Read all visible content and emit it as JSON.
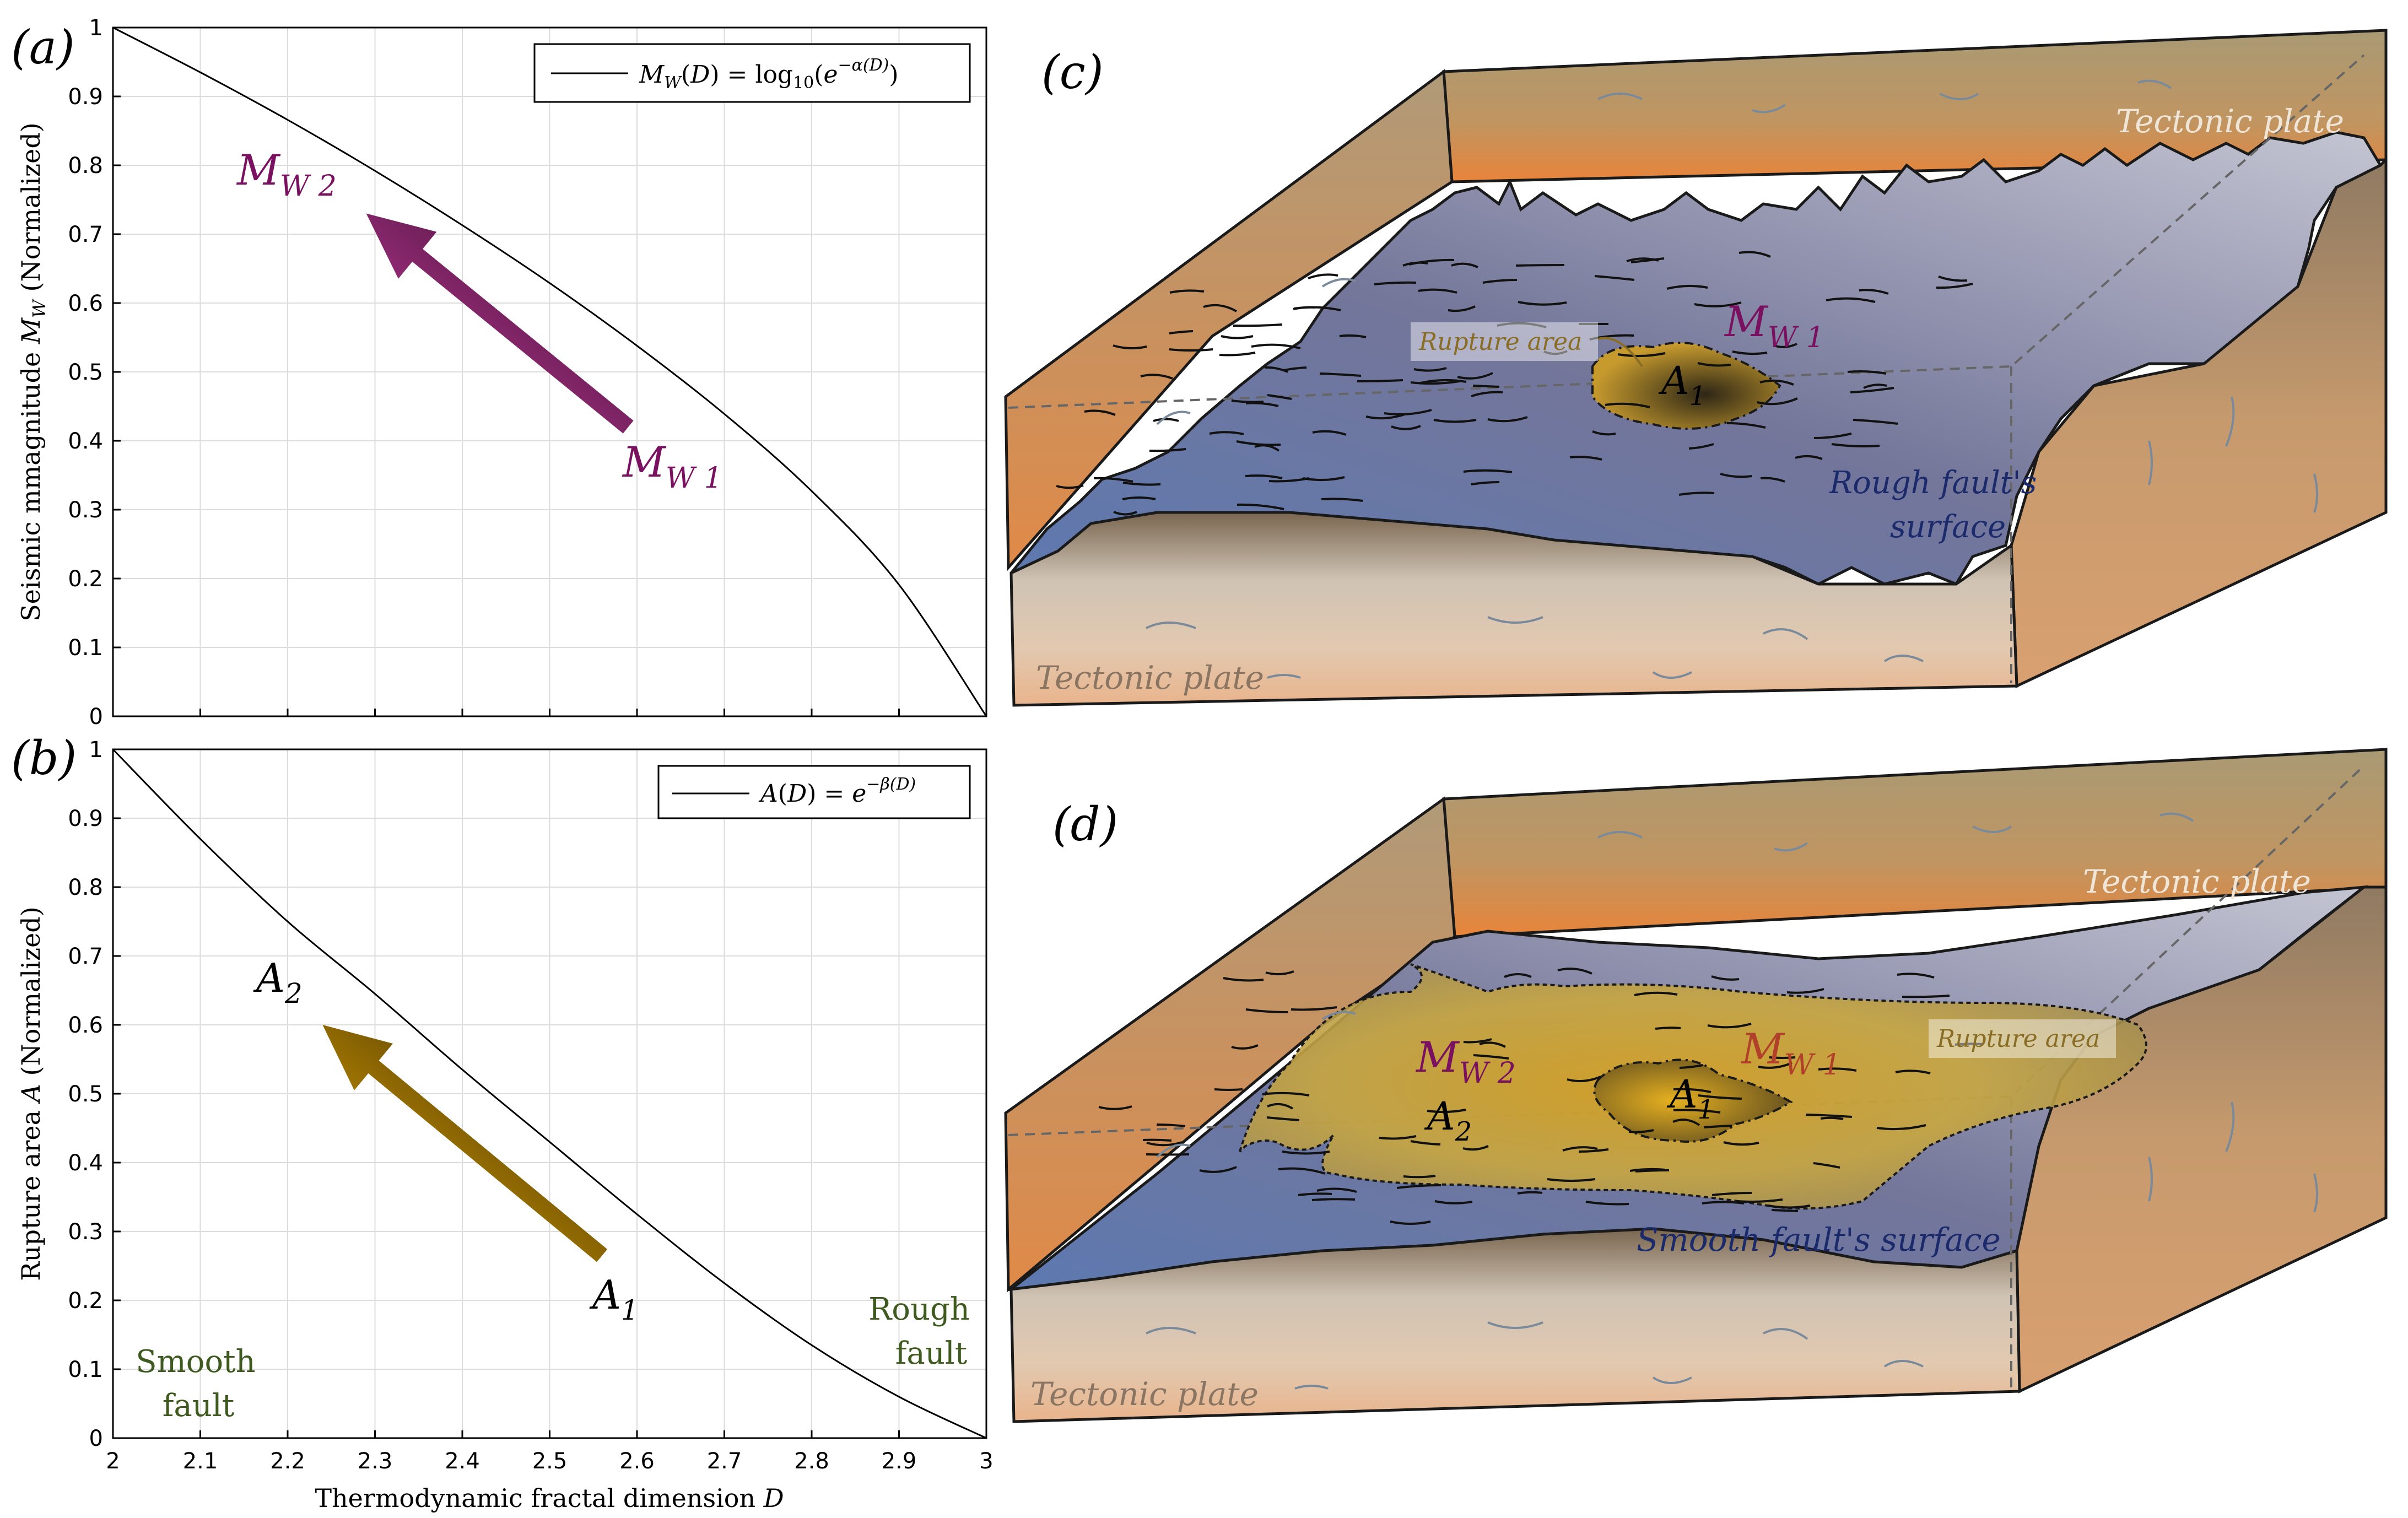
{
  "chart_data": [
    {
      "id": "a",
      "type": "line",
      "panel_label": "(a)",
      "x": [
        2.0,
        2.1,
        2.2,
        2.3,
        2.4,
        2.5,
        2.6,
        2.7,
        2.8,
        2.9,
        3.0
      ],
      "series": [
        {
          "name": "M_W(D) = log10(e^{-α(D)})",
          "values": [
            1.0,
            0.935,
            0.866,
            0.792,
            0.713,
            0.629,
            0.538,
            0.439,
            0.327,
            0.191,
            0.0
          ],
          "color": "#000000"
        }
      ],
      "xlim": [
        2,
        3
      ],
      "ylim": [
        0,
        1
      ],
      "xticks": [
        "2",
        "2.1",
        "2.2",
        "2.3",
        "2.4",
        "2.5",
        "2.6",
        "2.7",
        "2.8",
        "2.9",
        "3"
      ],
      "yticks": [
        "0",
        "0.1",
        "0.2",
        "0.3",
        "0.4",
        "0.5",
        "0.6",
        "0.7",
        "0.8",
        "0.9",
        "1"
      ],
      "ylabel": "Seismic mmagnitude M_W (Normalized)",
      "xlabel": "",
      "grid": true,
      "legend": {
        "position": "top-right",
        "text": "M_W(D) = log10(e^{-α(D)})"
      },
      "arrow": {
        "from": [
          2.59,
          0.42
        ],
        "to": [
          2.29,
          0.73
        ],
        "color_start": "#d43fa9",
        "color_end": "#2a0a22"
      },
      "annotations": [
        {
          "text": "M",
          "sub": "W 2",
          "x": 2.2,
          "y": 0.79,
          "color": "#7a1060"
        },
        {
          "text": "M",
          "sub": "W 1",
          "x": 2.61,
          "y": 0.36,
          "color": "#7a1060"
        }
      ]
    },
    {
      "id": "b",
      "type": "line",
      "panel_label": "(b)",
      "x": [
        2.0,
        2.1,
        2.2,
        2.3,
        2.4,
        2.5,
        2.6,
        2.7,
        2.8,
        2.9,
        3.0
      ],
      "series": [
        {
          "name": "A(D) = e^{-β(D)}",
          "values": [
            1.0,
            0.87,
            0.75,
            0.645,
            0.535,
            0.43,
            0.325,
            0.225,
            0.135,
            0.06,
            0.0
          ],
          "color": "#000000"
        }
      ],
      "xlim": [
        2,
        3
      ],
      "ylim": [
        0,
        1
      ],
      "xticks": [
        "2",
        "2.1",
        "2.2",
        "2.3",
        "2.4",
        "2.5",
        "2.6",
        "2.7",
        "2.8",
        "2.9",
        "3"
      ],
      "yticks": [
        "0",
        "0.1",
        "0.2",
        "0.3",
        "0.4",
        "0.5",
        "0.6",
        "0.7",
        "0.8",
        "0.9",
        "1"
      ],
      "ylabel": "Rupture area A (Normalized)",
      "xlabel": "Thermodynamic fractal dimension D",
      "grid": true,
      "legend": {
        "position": "top-right",
        "text": "A(D) = e^{-β(D)}"
      },
      "arrow": {
        "from": [
          2.56,
          0.265
        ],
        "to": [
          2.24,
          0.6
        ],
        "color_start": "#f0b000",
        "color_end": "#2a1e05"
      },
      "annotations": [
        {
          "text": "A",
          "sub": "2",
          "x": 2.19,
          "y": 0.64,
          "color": "#000000"
        },
        {
          "text": "A",
          "sub": "1",
          "x": 2.57,
          "y": 0.18,
          "color": "#000000"
        },
        {
          "text": "Smooth",
          "x": 2.09,
          "y": 0.09,
          "color": "#3f5a1e"
        },
        {
          "text": "fault",
          "x": 2.1,
          "y": 0.035,
          "color": "#3f5a1e"
        },
        {
          "text": "Rough",
          "x": 2.95,
          "y": 0.165,
          "color": "#3f5a1e"
        },
        {
          "text": "fault",
          "x": 2.96,
          "y": 0.105,
          "color": "#3f5a1e"
        }
      ]
    }
  ],
  "illustration_c": {
    "panel_label": "(c)",
    "tectonic_plate_top": "Tectonic plate",
    "tectonic_plate_bottom": "Tectonic plate",
    "rupture_area": "Rupture area",
    "mw1_main": "M",
    "mw1_sub": "W 1",
    "a1_main": "A",
    "a1_sub": "1",
    "surface_line1": "Rough fault's",
    "surface_line2": "surface"
  },
  "illustration_d": {
    "panel_label": "(d)",
    "tectonic_plate_top": "Tectonic plate",
    "tectonic_plate_bottom": "Tectonic plate",
    "rupture_area": "Rupture area",
    "mw2_main": "M",
    "mw2_sub": "W 2",
    "mw1_main": "M",
    "mw1_sub": "W 1",
    "a1_main": "A",
    "a1_sub": "1",
    "a2_main": "A",
    "a2_sub": "2",
    "surface_label": "Smooth fault's surface"
  },
  "colors": {
    "plate_top": "#b29a6e",
    "plate_orange": "#e8843a",
    "plate_side": "#c59a6a",
    "fault_blue": "#5f77a8",
    "fault_grey": "#b3b5c6",
    "rupture_gold": "#d4a62a",
    "mw_purple": "#7a1060",
    "surface_text": "#1b2a6b",
    "green_text": "#3f5a1e"
  }
}
